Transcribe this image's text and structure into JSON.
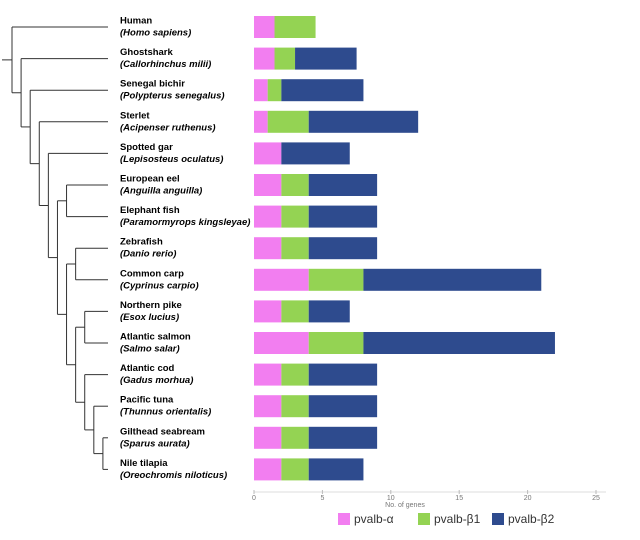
{
  "chart_data": {
    "type": "stacked-barh",
    "categories": [
      "Human",
      "Ghostshark",
      "Senegal bichir",
      "Sterlet",
      "Spotted gar",
      "European eel",
      "Elephant fish",
      "Zebrafish",
      "Common carp",
      "Northern pike",
      "Atlantic salmon",
      "Atlantic cod",
      "Pacific tuna",
      "Gilthead seabream",
      "Nile tilapia"
    ],
    "scientific_names": [
      "(Homo sapiens)",
      "(Callorhinchus milii)",
      "(Polypterus senegalus)",
      "(Acipenser ruthenus)",
      "(Lepisosteus oculatus)",
      "(Anguilla anguilla)",
      "(Paramormyrops kingsleyae)",
      "(Danio rerio)",
      "(Cyprinus carpio)",
      "(Esox lucius)",
      "(Salmo salar)",
      "(Gadus morhua)",
      "(Thunnus orientalis)",
      "(Sparus aurata)",
      "(Oreochromis niloticus)"
    ],
    "series": [
      {
        "name": "pvalb-α",
        "color": "#f27ef0",
        "values": [
          1.5,
          1.5,
          1,
          1,
          2,
          2,
          2,
          2,
          4,
          2,
          4,
          2,
          2,
          2,
          2
        ]
      },
      {
        "name": "pvalb-β1",
        "color": "#94d353",
        "values": [
          3,
          1.5,
          1,
          3,
          0,
          2,
          2,
          2,
          4,
          2,
          4,
          2,
          2,
          2,
          2
        ]
      },
      {
        "name": "pvalb-β2",
        "color": "#2e4b8e",
        "values": [
          0,
          4.5,
          6,
          8,
          5,
          5,
          5,
          5,
          13,
          3,
          14,
          5,
          5,
          5,
          4
        ]
      }
    ],
    "xlabel": "No. of genes",
    "xlim": [
      0,
      25
    ],
    "xticks": [
      0,
      5,
      10,
      15,
      20,
      25
    ]
  }
}
